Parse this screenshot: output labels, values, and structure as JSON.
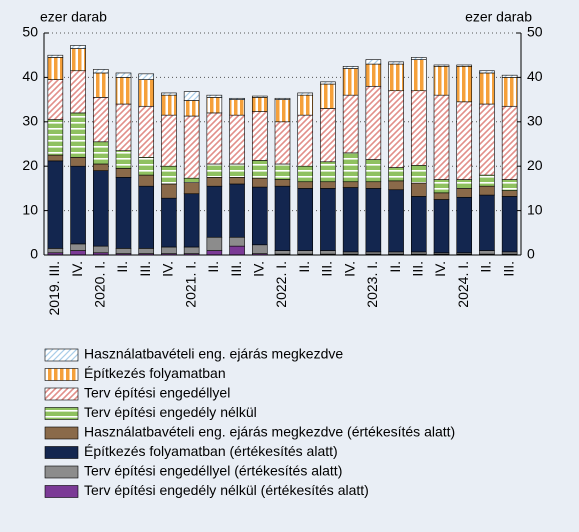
{
  "chart_data": {
    "type": "stacked_bar",
    "ylabel": "ezer darab",
    "y2label": "ezer darab",
    "categories": [
      "2019. III.",
      "IV.",
      "2020. I.",
      "II.",
      "III.",
      "IV.",
      "2021. I.",
      "II.",
      "III.",
      "IV.",
      "2022. I.",
      "II.",
      "III.",
      "IV.",
      "2023. I.",
      "II.",
      "III.",
      "IV.",
      "2024. I.",
      "II.",
      "III."
    ],
    "series": [
      {
        "name": "Használatbavételi eng. ejárás megkezdve",
        "color": "#a9cde9",
        "values": [
          0.5,
          0.7,
          0.8,
          1,
          1.3,
          0.5,
          2,
          0.5,
          0.3,
          0.3,
          0.3,
          0.5,
          0.5,
          0.5,
          1,
          0.5,
          0.5,
          0.3,
          0.3,
          0.5,
          0.5
        ]
      },
      {
        "name": "Építkezés folyamatban",
        "color": "#f5a03a",
        "values": [
          5,
          5,
          5.5,
          6,
          6,
          4.5,
          3.5,
          3.5,
          3.5,
          3.2,
          5,
          4.5,
          5.5,
          6,
          5,
          6,
          7,
          6.5,
          8,
          7,
          6.5
        ]
      },
      {
        "name": "Terv építési engedéllyel",
        "color": "#e28f8a",
        "values": [
          9,
          9.5,
          10,
          10.5,
          11.5,
          11.5,
          14,
          11.5,
          11,
          11,
          9.5,
          11.5,
          12,
          13,
          16.5,
          17.3,
          16.8,
          19,
          17.5,
          16,
          16.5
        ]
      },
      {
        "name": "Terv építési engedély nélkül",
        "color": "#8fc160",
        "values": [
          8,
          10,
          5,
          4,
          4,
          4,
          1,
          3,
          3,
          4,
          3.5,
          3.5,
          4.5,
          6.5,
          5,
          3,
          4,
          3,
          2,
          2.5,
          2.5
        ]
      },
      {
        "name": "Használatbavételi eng. ejárás megkezdve (értékesítés alatt)",
        "color": "#8a6a4a",
        "values": [
          1.3,
          2,
          1.5,
          2,
          2.5,
          3.2,
          2.5,
          2,
          1.5,
          2,
          1.5,
          1.5,
          1.5,
          1.3,
          1.5,
          2,
          3,
          1.5,
          2,
          2,
          1.3
        ]
      },
      {
        "name": "Építkezés folyamatban (értékesítés alatt)",
        "color": "#13264f",
        "values": [
          19.7,
          17.5,
          17,
          16,
          14,
          11,
          12,
          11.5,
          12,
          13,
          14.5,
          14,
          14,
          14.5,
          14.3,
          14,
          12.5,
          12,
          12.5,
          12.5,
          12.5
        ]
      },
      {
        "name": "Terv építési engedéllyel (értékesítés alatt)",
        "color": "#8c8c8c",
        "values": [
          1,
          1.5,
          1.5,
          1.2,
          1.2,
          1.5,
          1.5,
          3,
          2,
          2,
          0.8,
          0.8,
          0.8,
          0.5,
          0.5,
          0.5,
          0.5,
          0.3,
          0.3,
          0.8,
          0.5
        ]
      },
      {
        "name": "Terv építési engedély nélkül (értékesítés alatt)",
        "color": "#7b3a96",
        "values": [
          0.5,
          1,
          0.5,
          0.3,
          0.3,
          0.3,
          0.3,
          1,
          2,
          0.3,
          0.2,
          0.2,
          0.2,
          0.2,
          0.2,
          0.2,
          0.2,
          0.2,
          0.2,
          0.2,
          0.2
        ]
      }
    ],
    "ylim": [
      0,
      50
    ],
    "yticks": [
      0,
      10,
      20,
      30,
      40,
      50
    ],
    "y2lim": [
      0,
      50
    ],
    "y2ticks": [
      0,
      10,
      20,
      30,
      40,
      50
    ],
    "grid": true
  }
}
